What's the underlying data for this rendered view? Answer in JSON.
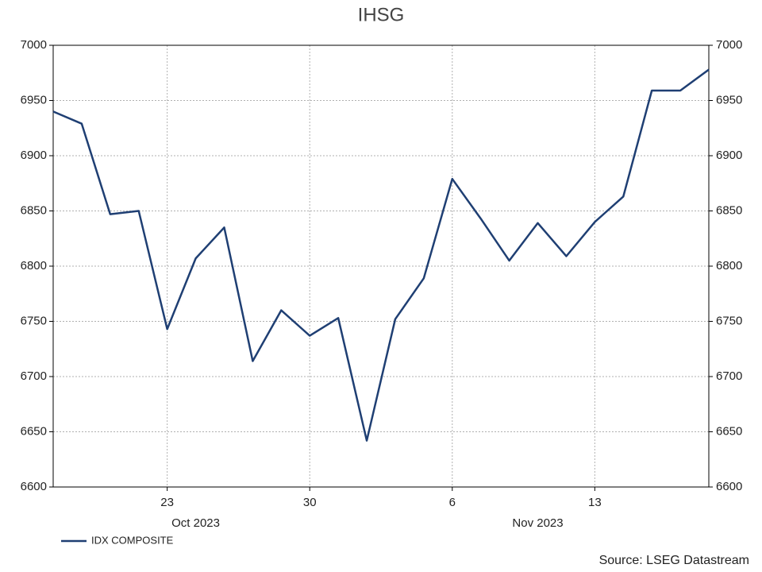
{
  "chart_data": {
    "type": "line",
    "title": "IHSG",
    "x": [
      "2023-10-17",
      "2023-10-18",
      "2023-10-19",
      "2023-10-20",
      "2023-10-23",
      "2023-10-24",
      "2023-10-25",
      "2023-10-26",
      "2023-10-27",
      "2023-10-30",
      "2023-10-31",
      "2023-11-01",
      "2023-11-02",
      "2023-11-03",
      "2023-11-06",
      "2023-11-07",
      "2023-11-08",
      "2023-11-09",
      "2023-11-10",
      "2023-11-13",
      "2023-11-14",
      "2023-11-15",
      "2023-11-16",
      "2023-11-17"
    ],
    "series": [
      {
        "name": "IDX COMPOSITE",
        "color": "#1f3f73",
        "values": [
          6940,
          6929,
          6847,
          6850,
          6743,
          6807,
          6835,
          6714,
          6760,
          6737,
          6753,
          6642,
          6752,
          6789,
          6879,
          6843,
          6805,
          6839,
          6809,
          6840,
          6863,
          6959,
          6959,
          6978
        ]
      }
    ],
    "xticks": [
      {
        "value": "2023-10-23",
        "label": "23"
      },
      {
        "value": "2023-10-30",
        "label": "30"
      },
      {
        "value": "2023-11-06",
        "label": "6"
      },
      {
        "value": "2023-11-13",
        "label": "13"
      }
    ],
    "months": [
      {
        "value": "2023-10",
        "label": "Oct 2023"
      },
      {
        "value": "2023-11",
        "label": "Nov 2023"
      }
    ],
    "ylim": [
      6600,
      7000
    ],
    "yticks": [
      6600,
      6650,
      6700,
      6750,
      6800,
      6850,
      6900,
      6950,
      7000
    ],
    "y2lim": [
      6600,
      7000
    ],
    "y2ticks": [
      6600,
      6650,
      6700,
      6750,
      6800,
      6850,
      6900,
      6950,
      7000
    ],
    "grid": true,
    "legend": "bottom-left",
    "source": "Source: LSEG Datastream"
  }
}
